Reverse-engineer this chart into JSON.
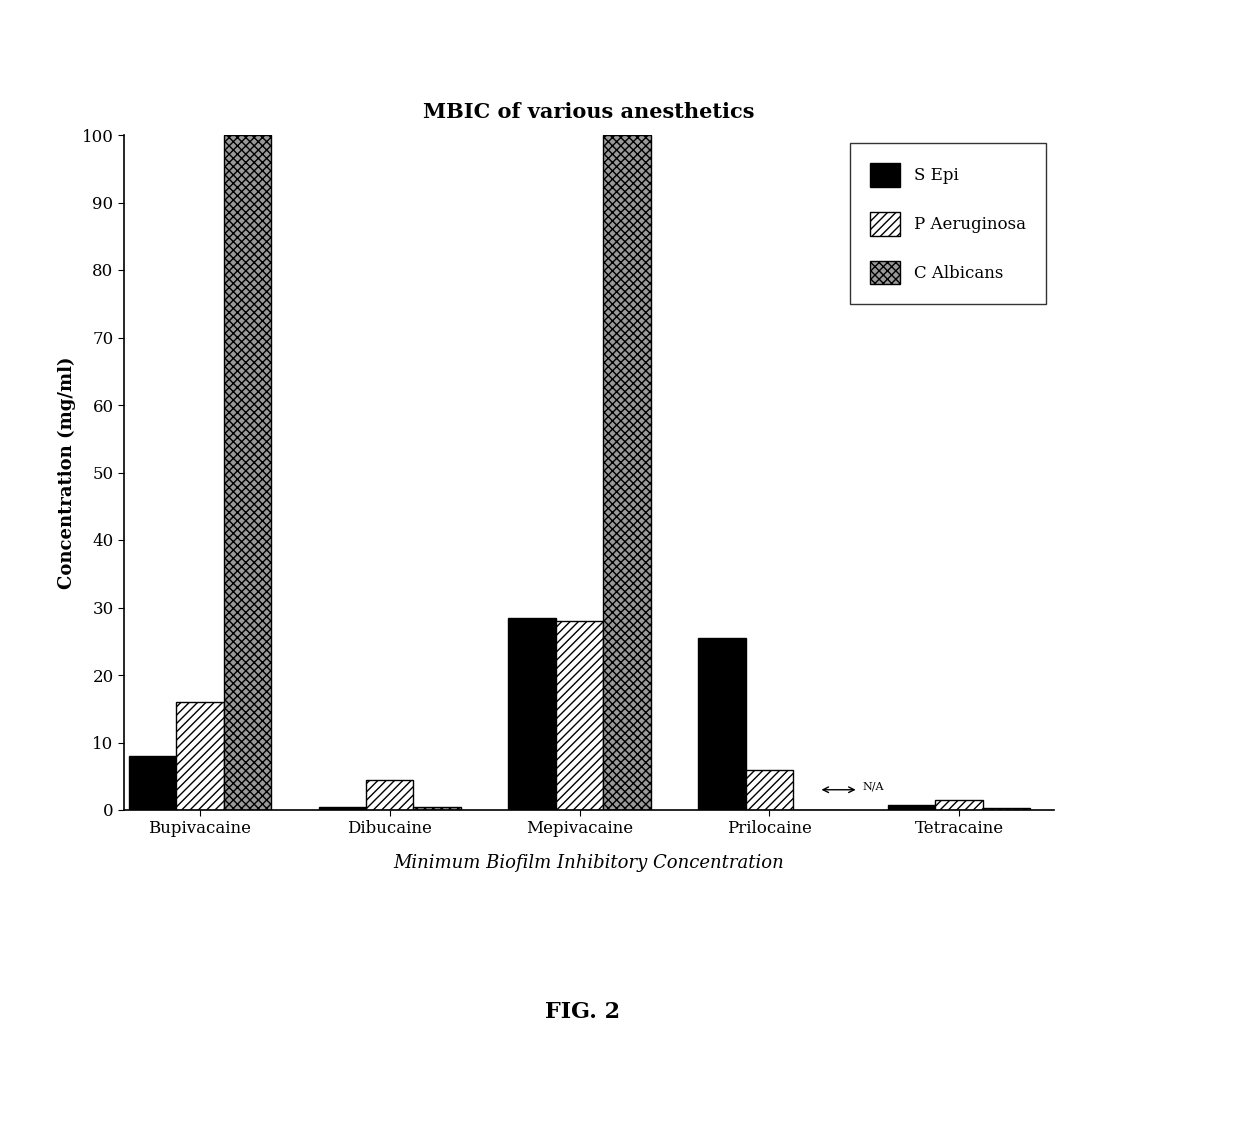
{
  "title": "MBIC of various anesthetics",
  "xlabel": "Minimum Biofilm Inhibitory Concentration",
  "ylabel": "Concentration (mg/ml)",
  "categories": [
    "Bupivacaine",
    "Dibucaine",
    "Mepivacaine",
    "Prilocaine",
    "Tetracaine"
  ],
  "s_epi": [
    8.0,
    0.5,
    28.5,
    25.5,
    0.8
  ],
  "p_aeruginosa": [
    16.0,
    4.5,
    28.0,
    6.0,
    1.5
  ],
  "c_albicans": [
    100.0,
    0.5,
    100.0,
    0.0,
    0.3
  ],
  "na_annotation": {
    "category_idx": 3,
    "text": "N/A"
  },
  "ylim": [
    0,
    100
  ],
  "yticks": [
    0,
    10,
    20,
    30,
    40,
    50,
    60,
    70,
    80,
    90,
    100
  ],
  "legend_labels": [
    "S Epi",
    "P Aeruginosa",
    "C Albicans"
  ],
  "fig_label": "FIG. 2",
  "bar_width": 0.25,
  "group_positions": [
    0.3,
    1.3,
    2.3,
    3.3,
    4.3
  ],
  "title_fontsize": 15,
  "axis_label_fontsize": 13,
  "tick_fontsize": 12,
  "legend_fontsize": 12,
  "xlabel_fontsize": 13
}
